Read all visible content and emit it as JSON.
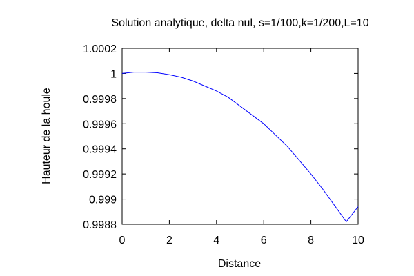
{
  "chart_data": {
    "type": "line",
    "title": "Solution analytique, delta nul, s=1/100,k=1/200,L=10",
    "xlabel": "Distance",
    "ylabel": "Hauteur de la houle",
    "xlim": [
      0,
      10
    ],
    "ylim": [
      0.9988,
      1.0002
    ],
    "x_ticks": [
      0,
      2,
      4,
      6,
      8,
      10
    ],
    "x_tick_labels": [
      "0",
      "2",
      "4",
      "6",
      "8",
      "10"
    ],
    "y_ticks": [
      0.9988,
      0.999,
      0.9992,
      0.9994,
      0.9996,
      0.9998,
      1.0,
      1.0002
    ],
    "y_tick_labels": [
      "0.9988",
      "0.999",
      "0.9992",
      "0.9994",
      "0.9996",
      "0.9998",
      "1",
      "1.0002"
    ],
    "grid": false,
    "legend": "none",
    "series_color": "#0000ff",
    "series": [
      {
        "x": [
          0,
          0.5,
          1,
          1.5,
          2,
          2.5,
          3,
          3.5,
          4,
          4.5,
          5,
          5.5,
          6,
          6.5,
          7,
          7.5,
          8,
          8.5,
          9,
          9.5,
          10
        ],
        "y": [
          1.0,
          1.00001,
          1.00001,
          1.000005,
          0.99999,
          0.99997,
          0.99994,
          0.9999,
          0.99986,
          0.99981,
          0.99974,
          0.99967,
          0.9996,
          0.99951,
          0.99942,
          0.99931,
          0.9992,
          0.99908,
          0.99895,
          0.99882,
          0.99894
        ]
      }
    ]
  }
}
